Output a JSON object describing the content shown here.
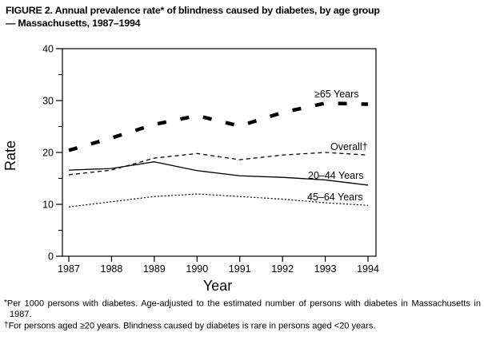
{
  "figure": {
    "title_line1": "FIGURE 2. Annual prevalence rate* of blindness caused by diabetes, by age group",
    "title_line2": "— Massachusetts, 1987–1994"
  },
  "chart_data": {
    "type": "line",
    "title": "",
    "xlabel": "Year",
    "ylabel": "Rate",
    "x": [
      1987,
      1988,
      1989,
      1990,
      1991,
      1992,
      1993,
      1994
    ],
    "ylim": [
      0,
      40
    ],
    "yticks": [
      0,
      10,
      20,
      30,
      40
    ],
    "yticks_minor": [
      5,
      15,
      25,
      35
    ],
    "grid": false,
    "legend_position": "inline-labels",
    "line_color": "#000000",
    "series": [
      {
        "name": "≥65 Years",
        "line_style": "bold-dashed",
        "values": [
          20.4,
          22.8,
          25.4,
          27.1,
          25.1,
          27.7,
          29.5,
          29.3
        ]
      },
      {
        "name": "Overall†",
        "line_style": "dashed",
        "values": [
          15.7,
          16.6,
          18.9,
          19.8,
          18.6,
          19.5,
          20.0,
          19.5
        ]
      },
      {
        "name": "20–44 Years",
        "line_style": "solid",
        "values": [
          16.6,
          16.9,
          18.2,
          16.5,
          15.5,
          15.2,
          14.7,
          13.7
        ]
      },
      {
        "name": "45–64 Years",
        "line_style": "dotted",
        "values": [
          9.5,
          10.5,
          11.5,
          12.0,
          11.5,
          11.0,
          10.3,
          9.8
        ]
      }
    ]
  },
  "footnotes": [
    {
      "marker": "*",
      "text": "Per 1000 persons with diabetes. Age-adjusted to the estimated number of persons with diabetes in Massachusetts in 1987."
    },
    {
      "marker": "†",
      "text": "For persons aged ≥20 years. Blindness caused by diabetes is rare in persons aged <20 years."
    }
  ]
}
